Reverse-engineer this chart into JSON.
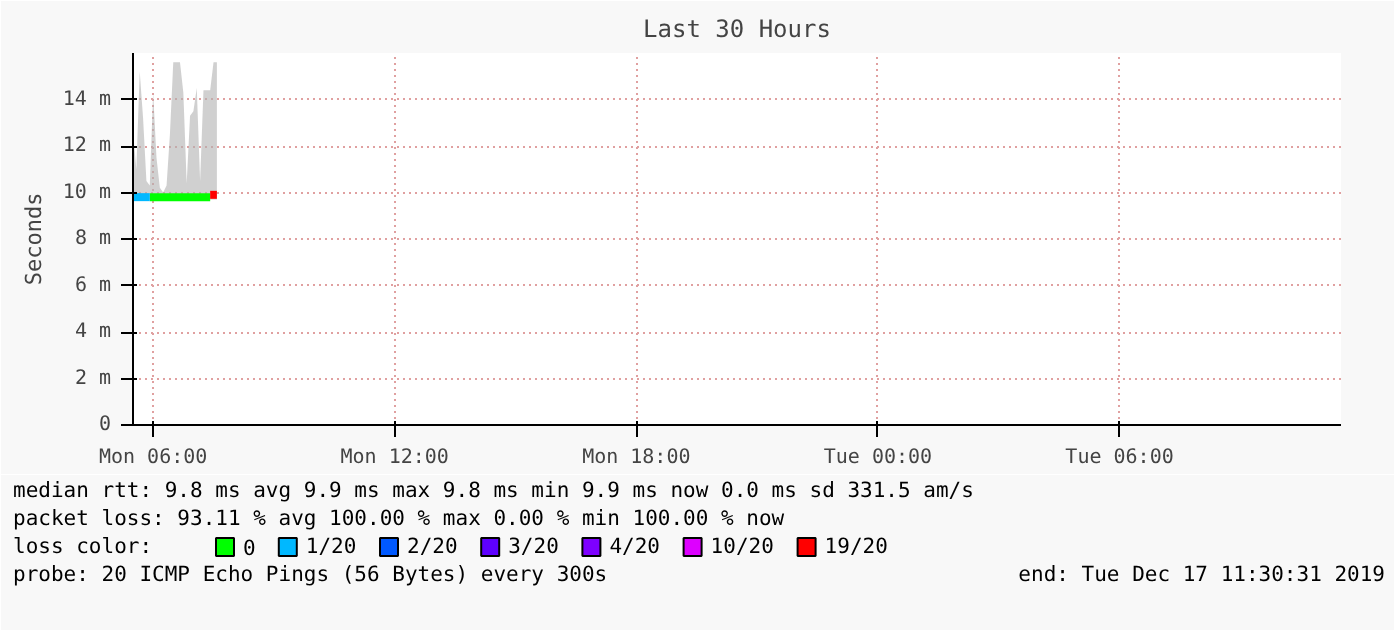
{
  "chart_data": {
    "type": "line",
    "title": "Last 30 Hours",
    "ylabel": "Seconds",
    "x": [
      "2019-12-16T05:30",
      "2019-12-16T05:35",
      "2019-12-16T05:40",
      "2019-12-16T05:45",
      "2019-12-16T05:50",
      "2019-12-16T05:55",
      "2019-12-16T06:00",
      "2019-12-16T06:05",
      "2019-12-16T06:10",
      "2019-12-16T06:15",
      "2019-12-16T06:20",
      "2019-12-16T06:25",
      "2019-12-16T06:30",
      "2019-12-16T06:35",
      "2019-12-16T06:40",
      "2019-12-16T06:45",
      "2019-12-16T06:50",
      "2019-12-16T06:55",
      "2019-12-16T07:00",
      "2019-12-16T07:05",
      "2019-12-16T07:10",
      "2019-12-16T07:15",
      "2019-12-16T07:20",
      "2019-12-16T07:25",
      "2019-12-16T07:30",
      "2019-12-16T07:35"
    ],
    "xlim": [
      "2019-12-16T05:30",
      "2019-12-17T11:30"
    ],
    "xticks": [
      {
        "value": "2019-12-16T06:00",
        "label": "Mon 06:00"
      },
      {
        "value": "2019-12-16T12:00",
        "label": "Mon 12:00"
      },
      {
        "value": "2019-12-16T18:00",
        "label": "Mon 18:00"
      },
      {
        "value": "2019-12-17T00:00",
        "label": "Tue 00:00"
      },
      {
        "value": "2019-12-17T06:00",
        "label": "Tue 06:00"
      }
    ],
    "ylim": [
      0,
      16
    ],
    "yticks": [
      0,
      {
        "value": 2,
        "label": "2 m"
      },
      {
        "value": 4,
        "label": "4 m"
      },
      {
        "value": 6,
        "label": "6 m"
      },
      {
        "value": 8,
        "label": "8 m"
      },
      {
        "value": 10,
        "label": "10 m"
      },
      {
        "value": 12,
        "label": "12 m"
      },
      {
        "value": 14,
        "label": "14 m"
      }
    ],
    "grid": true,
    "line_style": "solid",
    "marker": "none",
    "legend": "bottom",
    "legend_title": "loss color:",
    "series": [
      {
        "name": "0",
        "color": "#00ff00",
        "values": [
          null,
          null,
          null,
          null,
          null,
          9.8,
          9.8,
          9.8,
          9.8,
          9.8,
          9.8,
          9.8,
          9.8,
          9.8,
          9.8,
          9.8,
          9.8,
          9.8,
          9.8,
          9.8,
          9.8,
          9.8,
          9.8,
          9.8,
          null,
          null
        ],
        "lower": [
          9.7,
          9.7,
          9.7,
          9.7,
          9.7,
          9.7,
          9.7,
          9.7,
          9.7,
          9.7,
          9.7,
          9.7,
          9.7,
          9.7,
          9.7,
          9.7,
          9.7,
          9.7,
          9.7,
          9.7,
          9.7,
          9.7,
          9.7,
          9.7,
          9.7,
          9.7
        ],
        "upper": [
          12.6,
          11.0,
          15.2,
          13.2,
          10.5,
          10.3,
          14.3,
          11.5,
          10.2,
          10.0,
          10.3,
          12.5,
          15.6,
          15.6,
          15.6,
          14.3,
          10.4,
          13.3,
          13.5,
          14.5,
          10.5,
          14.4,
          14.4,
          14.4,
          15.6,
          15.6
        ]
      },
      {
        "name": "1/20",
        "color": "#00b8ff",
        "values": [
          9.8,
          9.8,
          9.8,
          9.8,
          9.8,
          9.8,
          null,
          null,
          null,
          null,
          null,
          null,
          null,
          null,
          null,
          null,
          null,
          null,
          null,
          null,
          null,
          null,
          null,
          null,
          null,
          null
        ]
      },
      {
        "name": "2/20",
        "color": "#0059ff",
        "values": [
          null,
          null,
          null,
          null,
          null,
          null,
          null,
          null,
          null,
          null,
          null,
          null,
          null,
          null,
          null,
          null,
          null,
          null,
          null,
          null,
          null,
          null,
          null,
          null,
          null,
          null
        ]
      },
      {
        "name": "3/20",
        "color": "#5e00ff",
        "values": [
          null,
          null,
          null,
          null,
          null,
          null,
          null,
          null,
          null,
          null,
          null,
          null,
          null,
          null,
          null,
          null,
          null,
          null,
          null,
          null,
          null,
          null,
          null,
          null,
          null,
          null
        ]
      },
      {
        "name": "4/20",
        "color": "#7e00ff",
        "values": [
          null,
          null,
          null,
          null,
          null,
          null,
          null,
          null,
          null,
          null,
          null,
          null,
          null,
          null,
          null,
          null,
          null,
          null,
          null,
          null,
          null,
          null,
          null,
          null,
          null,
          null
        ]
      },
      {
        "name": "10/20",
        "color": "#dd00ff",
        "values": [
          null,
          null,
          null,
          null,
          null,
          null,
          null,
          null,
          null,
          null,
          null,
          null,
          null,
          null,
          null,
          null,
          null,
          null,
          null,
          null,
          null,
          null,
          null,
          null,
          null,
          null
        ]
      },
      {
        "name": "19/20",
        "color": "#ff0000",
        "values": [
          null,
          null,
          null,
          null,
          null,
          null,
          null,
          null,
          null,
          null,
          null,
          null,
          null,
          null,
          null,
          null,
          null,
          null,
          null,
          null,
          null,
          null,
          null,
          9.9,
          9.9,
          9.9
        ]
      }
    ],
    "annotations": [
      "median rtt:  9.8 ms avg  9.9 ms max  9.8 ms min  9.9 ms now  0.0 ms sd  331.5   am/s",
      "packet loss: 93.11 % avg  100.00 % max  0.00 % min  100.00 % now",
      "probe:       20 ICMP Echo Pings (56 Bytes) every 300s",
      "end: Tue Dec 17 11:30:31 2019"
    ]
  }
}
